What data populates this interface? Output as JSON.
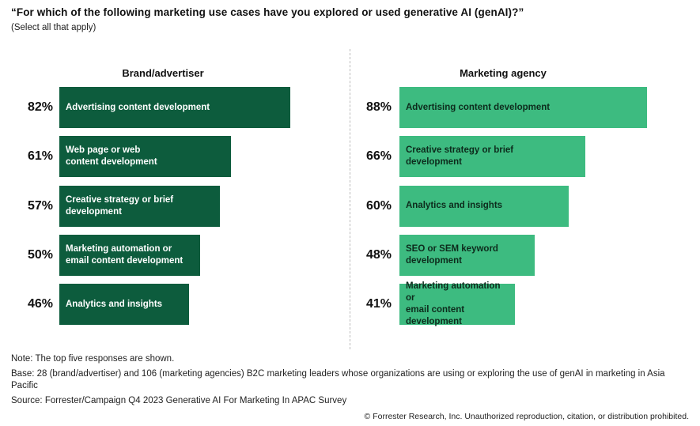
{
  "title": "“For which of the following marketing use cases have you explored or used generative AI (genAI)?”",
  "subtitle": "(Select all that apply)",
  "chart_data": [
    {
      "type": "bar",
      "orientation": "horizontal",
      "title": "Brand/advertiser",
      "categories": [
        "Advertising content development",
        "Web page or web\ncontent development",
        "Creative strategy or brief\ndevelopment",
        "Marketing automation or\nemail content development",
        "Analytics and insights"
      ],
      "values": [
        82,
        61,
        57,
        50,
        46
      ],
      "value_labels": [
        "82%",
        "61%",
        "57%",
        "50%",
        "46%"
      ],
      "color": "#0d5c3d"
    },
    {
      "type": "bar",
      "orientation": "horizontal",
      "title": "Marketing agency",
      "categories": [
        "Advertising content development",
        "Creative strategy or brief\ndevelopment",
        "Analytics and insights",
        "SEO or SEM keyword\ndevelopment",
        "Marketing automation or\nemail content\ndevelopment"
      ],
      "values": [
        88,
        66,
        60,
        48,
        41
      ],
      "value_labels": [
        "88%",
        "66%",
        "60%",
        "48%",
        "41%"
      ],
      "color": "#3dbb80"
    }
  ],
  "notes": {
    "note": "Note: The top five responses are shown.",
    "base": "Base: 28 (brand/advertiser) and 106 (marketing agencies) B2C marketing leaders whose organizations are using or exploring the use of genAI in marketing in Asia Pacific",
    "source": "Source: Forrester/Campaign Q4 2023 Generative AI For Marketing In APAC Survey"
  },
  "copyright": "© Forrester Research, Inc. Unauthorized reproduction, citation, or distribution prohibited."
}
